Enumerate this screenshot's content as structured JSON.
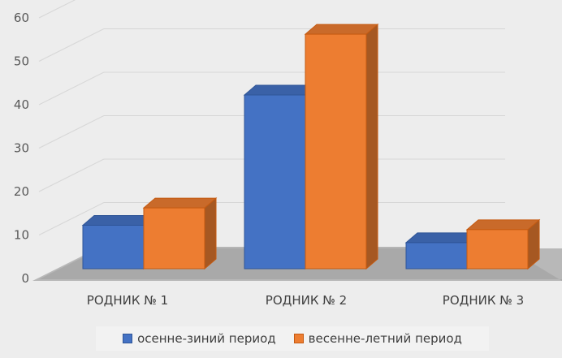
{
  "chart_data": {
    "type": "bar",
    "title": "",
    "xlabel": "",
    "ylabel": "",
    "categories": [
      "РОДНИК № 1",
      "РОДНИК № 2",
      "РОДНИК № 3"
    ],
    "series": [
      {
        "name": "осенне-зиний период",
        "values": [
          10,
          40,
          6
        ],
        "color": "#4472c4",
        "edge": "#2f5597"
      },
      {
        "name": "весенне-летний период",
        "values": [
          14,
          54,
          9
        ],
        "color": "#ed7d31",
        "edge": "#c55a11"
      }
    ],
    "yticks": [
      "0",
      "10",
      "20",
      "30",
      "40",
      "50",
      "60"
    ],
    "ylim": [
      0,
      60
    ],
    "grid": true,
    "legend_position": "bottom",
    "style": "3d-column"
  }
}
